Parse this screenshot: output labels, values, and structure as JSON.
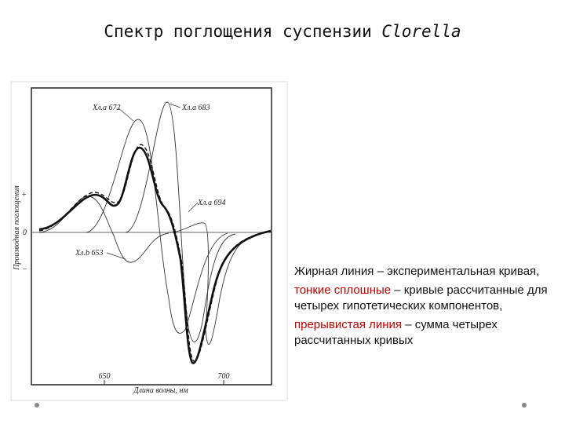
{
  "header": {
    "title": "Спектр поглощения суспензии ",
    "title_italic": "Clorella"
  },
  "figure": {
    "y_axis_label": "Производная поглощения",
    "x_axis_label": "Длина волны, нм",
    "y_tick_plus": "+",
    "y_tick_zero": "0",
    "y_tick_minus": "–",
    "x_tick_1": "650",
    "x_tick_2": "700",
    "labels": [
      "Хл.а 672",
      "Хл.а 683",
      "Хл.а 694",
      "Хл.b 653"
    ]
  },
  "notes": [
    {
      "strong": "",
      "text": "Жирная линия – экспериментальная кривая,"
    },
    {
      "strong": "тонкие сплошные",
      "text": " – кривые рассчитанные для четырех гипотетических компонентов,"
    },
    {
      "strong": "прерывистая линия",
      "text": " – сумма четырех рассчитанных кривых"
    }
  ]
}
